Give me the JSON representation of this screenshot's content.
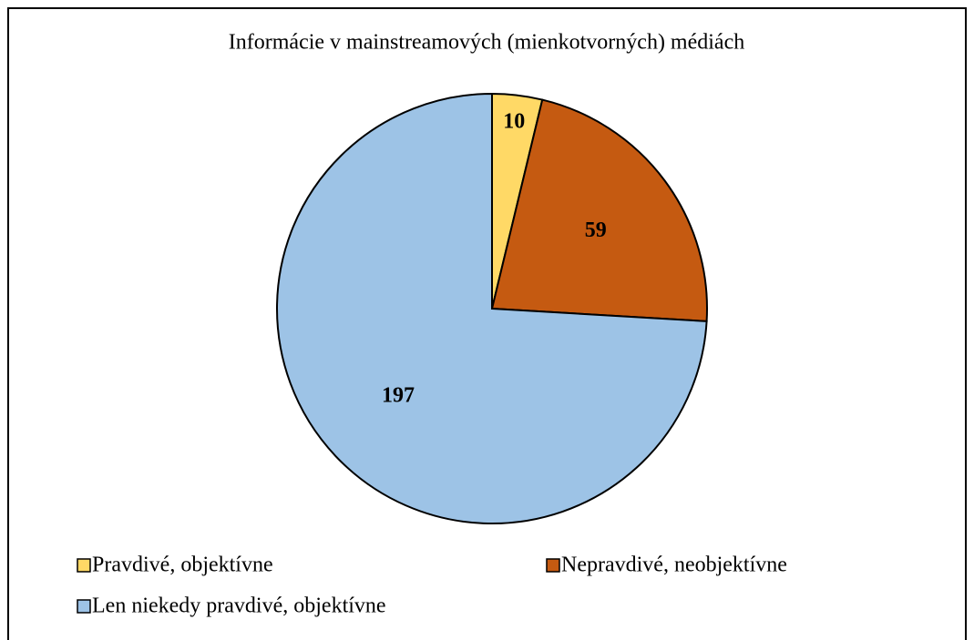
{
  "chart_data": {
    "type": "pie",
    "title": "Informácie v mainstreamových (mienkotvorných) médiách",
    "categories": [
      "Pravdivé, objektívne",
      "Nepravdivé, neobjektívne",
      "Len niekedy pravdivé, objektívne"
    ],
    "values": [
      10,
      59,
      197
    ],
    "colors": [
      "#ffd966",
      "#c55a11",
      "#9dc3e6"
    ],
    "legend": "bottom"
  }
}
